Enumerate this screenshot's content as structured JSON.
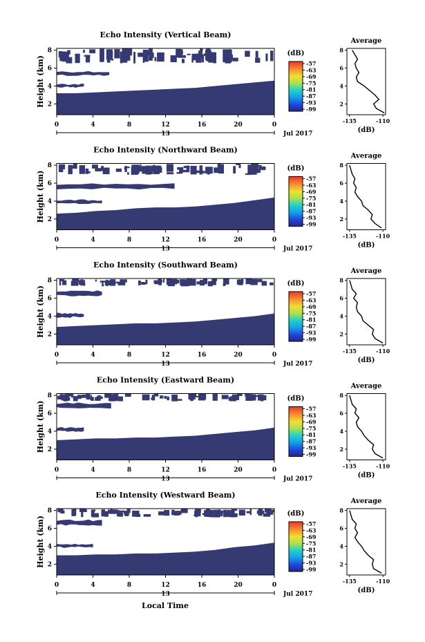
{
  "figure": {
    "xlabel": "Local Time",
    "date_label": "Jul 2017",
    "day_label": "13",
    "avg_xlabel": "(dB)",
    "avg_title": "Average",
    "cbar_label": "(dB)"
  },
  "chart_data": [
    {
      "type": "heatmap",
      "title": "Echo Intensity (Vertical Beam)",
      "ylabel": "Height (km)",
      "x_ticks": [
        "0",
        "4",
        "8",
        "12",
        "16",
        "20",
        "0"
      ],
      "xlim_hours": [
        0,
        24
      ],
      "y_ticks": [
        "2",
        "4",
        "6",
        "8"
      ],
      "ylim_km": [
        0.8,
        8.2
      ],
      "colorbar": {
        "label": "(dB)",
        "ticks": [
          "-57",
          "-63",
          "-69",
          "-75",
          "-81",
          "-87",
          "-93",
          "-99"
        ]
      },
      "dark_top_km": [
        3.2,
        3.2,
        3.3,
        3.4,
        3.5,
        3.6,
        3.7,
        3.8,
        4.0,
        4.2,
        4.4,
        4.6
      ],
      "bands": [
        {
          "layer": [
            5.2,
            5.6
          ],
          "x_hours": [
            0,
            5.8
          ]
        },
        {
          "layer": [
            3.9,
            4.2
          ],
          "x_hours": [
            0,
            3
          ]
        },
        {
          "layer": [
            6.6,
            8.2
          ],
          "x_hours": [
            0,
            14
          ]
        }
      ],
      "average": {
        "title": "Average",
        "xlabel": "(dB)",
        "x_ticks": [
          "-135",
          "-110"
        ],
        "xlim": [
          -137,
          -108
        ],
        "y": [
          1.0,
          1.5,
          2.0,
          2.5,
          3.0,
          3.5,
          4.0,
          4.5,
          5.0,
          5.5,
          6.0,
          6.5,
          7.0,
          7.5,
          8.0
        ],
        "x": [
          -109,
          -115,
          -117,
          -113,
          -116,
          -120,
          -124,
          -129,
          -130,
          -128,
          -130,
          -131,
          -129,
          -131,
          -133
        ]
      }
    },
    {
      "type": "heatmap",
      "title": "Echo Intensity (Northward Beam)",
      "ylabel": "Height (km)",
      "x_ticks": [
        "0",
        "4",
        "8",
        "12",
        "16",
        "20",
        "0"
      ],
      "xlim_hours": [
        0,
        24
      ],
      "y_ticks": [
        "2",
        "4",
        "6",
        "8"
      ],
      "ylim_km": [
        0.8,
        8.2
      ],
      "colorbar": {
        "label": "(dB)",
        "ticks": [
          "-57",
          "-63",
          "-69",
          "-75",
          "-81",
          "-87",
          "-93",
          "-99"
        ]
      },
      "dark_top_km": [
        2.6,
        2.7,
        2.9,
        3.0,
        3.2,
        3.3,
        3.3,
        3.4,
        3.6,
        3.8,
        4.1,
        4.4
      ],
      "bands": [
        {
          "layer": [
            5.4,
            5.9
          ],
          "x_hours": [
            0,
            13
          ]
        },
        {
          "layer": [
            3.7,
            4.1
          ],
          "x_hours": [
            0,
            5
          ]
        },
        {
          "layer": [
            7.0,
            8.2
          ],
          "x_hours": [
            0,
            13
          ]
        }
      ],
      "average": {
        "title": "Average",
        "xlabel": "(dB)",
        "x_ticks": [
          "-135",
          "-110"
        ],
        "xlim": [
          -137,
          -108
        ],
        "y": [
          1.0,
          1.5,
          2.0,
          2.5,
          3.0,
          3.5,
          4.0,
          4.5,
          5.0,
          5.5,
          6.0,
          6.5,
          7.0,
          7.5,
          8.0
        ],
        "x": [
          -111,
          -116,
          -119,
          -118,
          -121,
          -125,
          -126,
          -129,
          -131,
          -130,
          -132,
          -131,
          -133,
          -134,
          -135
        ]
      }
    },
    {
      "type": "heatmap",
      "title": "Echo Intensity (Southward Beam)",
      "ylabel": "Height (km)",
      "x_ticks": [
        "0",
        "4",
        "8",
        "12",
        "16",
        "20",
        "0"
      ],
      "xlim_hours": [
        0,
        24
      ],
      "y_ticks": [
        "2",
        "4",
        "6",
        "8"
      ],
      "ylim_km": [
        0.8,
        8.2
      ],
      "colorbar": {
        "label": "(dB)",
        "ticks": [
          "-57",
          "-63",
          "-69",
          "-75",
          "-81",
          "-87",
          "-93",
          "-99"
        ]
      },
      "dark_top_km": [
        2.8,
        2.9,
        3.0,
        3.1,
        3.2,
        3.2,
        3.3,
        3.4,
        3.6,
        3.8,
        4.0,
        4.3
      ],
      "bands": [
        {
          "layer": [
            6.3,
            6.8
          ],
          "x_hours": [
            0,
            5
          ]
        },
        {
          "layer": [
            3.9,
            4.3
          ],
          "x_hours": [
            0,
            3
          ]
        },
        {
          "layer": [
            7.4,
            8.2
          ],
          "x_hours": [
            0,
            12
          ]
        }
      ],
      "average": {
        "title": "Average",
        "xlabel": "(dB)",
        "x_ticks": [
          "-135",
          "-110"
        ],
        "xlim": [
          -137,
          -108
        ],
        "y": [
          1.0,
          1.5,
          2.0,
          2.5,
          3.0,
          3.5,
          4.0,
          4.5,
          5.0,
          5.5,
          6.0,
          6.5,
          7.0,
          7.5,
          8.0
        ],
        "x": [
          -110,
          -116,
          -118,
          -117,
          -121,
          -125,
          -126,
          -129,
          -130,
          -129,
          -132,
          -130,
          -133,
          -134,
          -135
        ]
      }
    },
    {
      "type": "heatmap",
      "title": "Echo Intensity (Eastward Beam)",
      "ylabel": "Height (km)",
      "x_ticks": [
        "0",
        "4",
        "8",
        "12",
        "16",
        "20",
        "0"
      ],
      "xlim_hours": [
        0,
        24
      ],
      "y_ticks": [
        "2",
        "4",
        "6",
        "8"
      ],
      "ylim_km": [
        0.8,
        8.2
      ],
      "colorbar": {
        "label": "(dB)",
        "ticks": [
          "-57",
          "-63",
          "-69",
          "-75",
          "-81",
          "-87",
          "-93",
          "-99"
        ]
      },
      "dark_top_km": [
        3.0,
        3.1,
        3.2,
        3.2,
        3.3,
        3.3,
        3.4,
        3.5,
        3.7,
        3.9,
        4.1,
        4.4
      ],
      "bands": [
        {
          "layer": [
            6.6,
            7.1
          ],
          "x_hours": [
            0,
            6
          ]
        },
        {
          "layer": [
            4.0,
            4.4
          ],
          "x_hours": [
            0,
            3
          ]
        },
        {
          "layer": [
            7.4,
            8.2
          ],
          "x_hours": [
            0,
            12
          ]
        }
      ],
      "average": {
        "title": "Average",
        "xlabel": "(dB)",
        "x_ticks": [
          "-135",
          "-110"
        ],
        "xlim": [
          -137,
          -108
        ],
        "y": [
          1.0,
          1.5,
          2.0,
          2.5,
          3.0,
          3.5,
          4.0,
          4.5,
          5.0,
          5.5,
          6.0,
          6.5,
          7.0,
          7.5,
          8.0
        ],
        "x": [
          -110,
          -116,
          -118,
          -117,
          -121,
          -124,
          -126,
          -129,
          -130,
          -128,
          -131,
          -130,
          -133,
          -134,
          -135
        ]
      }
    },
    {
      "type": "heatmap",
      "title": "Echo Intensity (Westward Beam)",
      "ylabel": "Height (km)",
      "x_ticks": [
        "0",
        "4",
        "8",
        "12",
        "16",
        "20",
        "0"
      ],
      "xlim_hours": [
        0,
        24
      ],
      "y_ticks": [
        "2",
        "4",
        "6",
        "8"
      ],
      "ylim_km": [
        0.8,
        8.2
      ],
      "colorbar": {
        "label": "(dB)",
        "ticks": [
          "-57",
          "-63",
          "-69",
          "-75",
          "-81",
          "-87",
          "-93",
          "-99"
        ]
      },
      "dark_top_km": [
        3.0,
        3.0,
        3.1,
        3.1,
        3.2,
        3.2,
        3.3,
        3.4,
        3.6,
        3.9,
        4.1,
        4.4
      ],
      "bands": [
        {
          "layer": [
            6.4,
            6.9
          ],
          "x_hours": [
            0,
            5
          ]
        },
        {
          "layer": [
            3.9,
            4.2
          ],
          "x_hours": [
            0,
            4
          ]
        },
        {
          "layer": [
            7.3,
            8.2
          ],
          "x_hours": [
            0,
            12
          ]
        }
      ],
      "average": {
        "title": "Average",
        "xlabel": "(dB)",
        "x_ticks": [
          "-135",
          "-110"
        ],
        "xlim": [
          -137,
          -108
        ],
        "y": [
          1.0,
          1.5,
          2.0,
          2.5,
          3.0,
          3.5,
          4.0,
          4.5,
          5.0,
          5.5,
          6.0,
          6.5,
          7.0,
          7.5,
          8.0
        ],
        "x": [
          -111,
          -117,
          -118,
          -117,
          -121,
          -124,
          -126,
          -129,
          -131,
          -129,
          -131,
          -130,
          -133,
          -134,
          -135
        ]
      }
    }
  ]
}
